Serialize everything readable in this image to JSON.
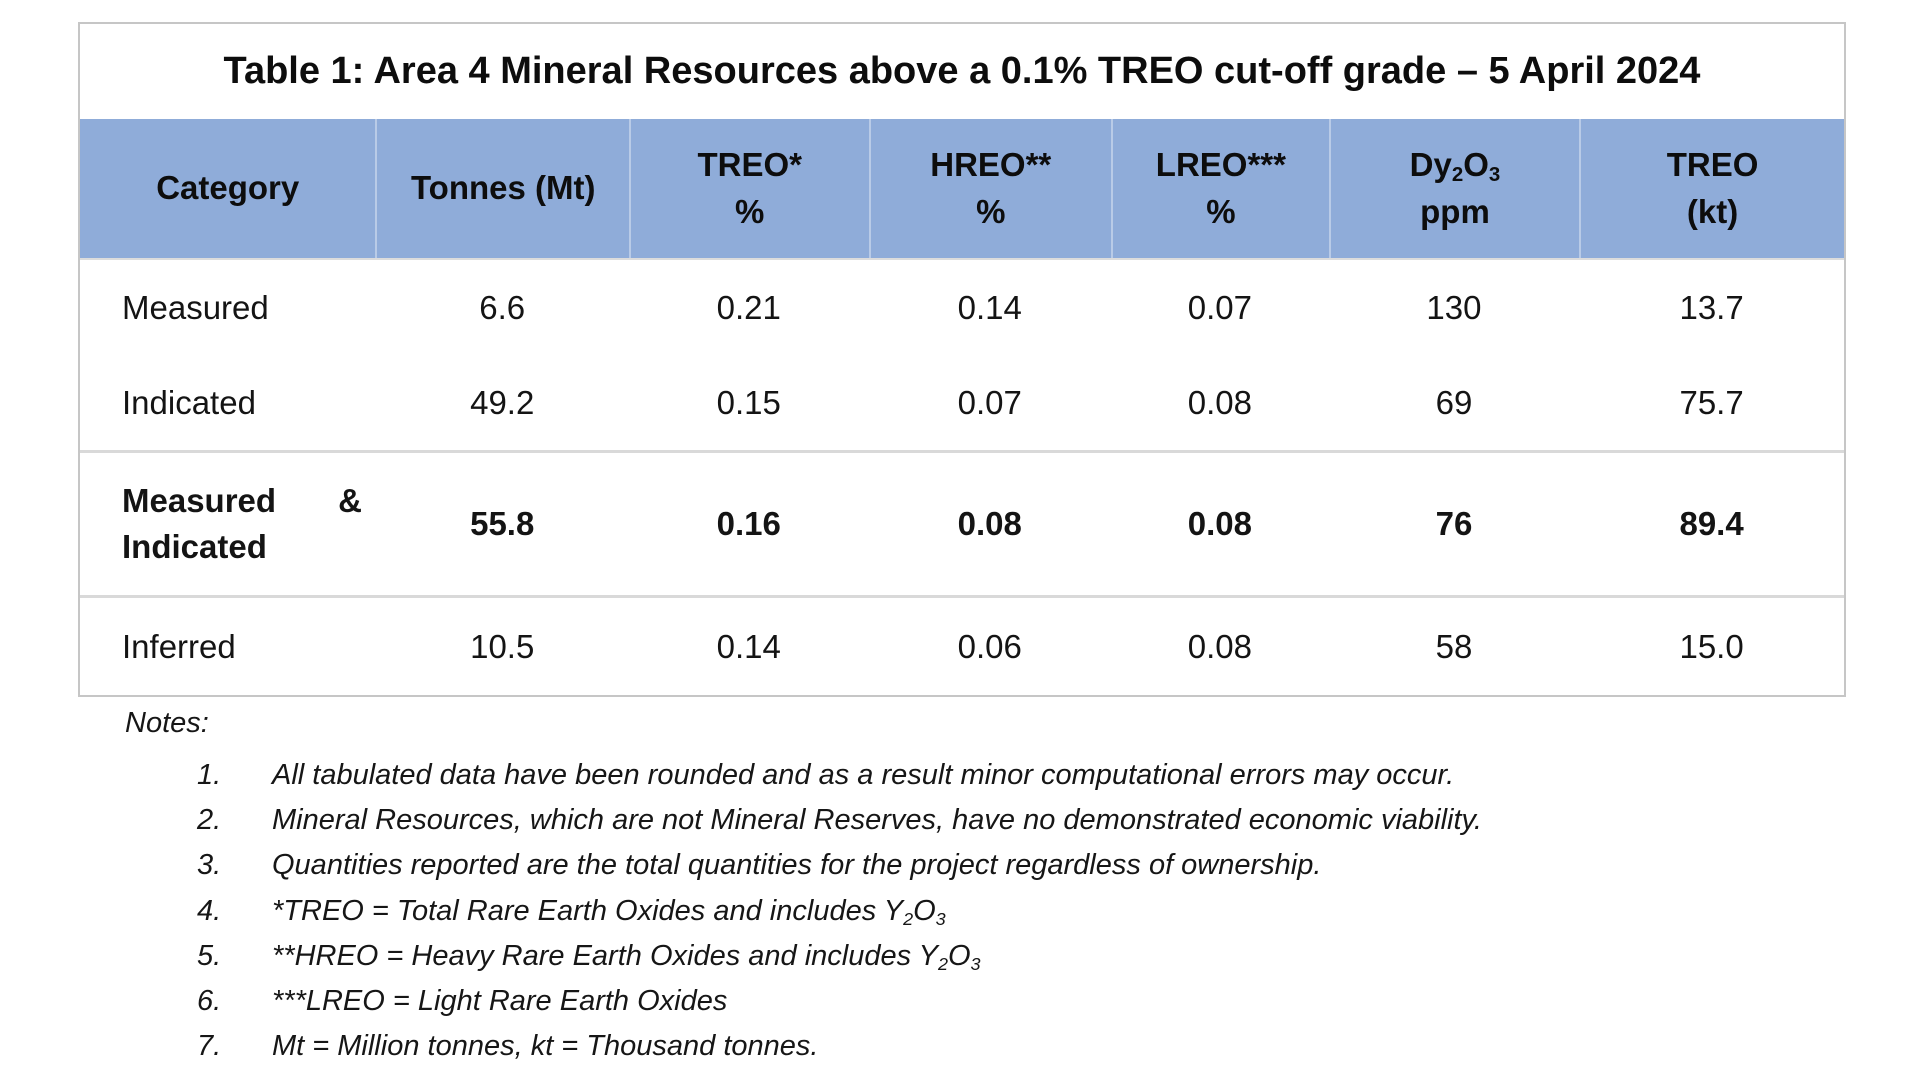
{
  "table": {
    "title": "Table 1: Area 4 Mineral Resources above a 0.1% TREO cut-off grade – 5 April 2024",
    "header": {
      "category": "Category",
      "tonnes": "Tonnes (Mt)",
      "treo_line1": "TREO*",
      "treo_line2": "%",
      "hreo_line1": "HREO**",
      "hreo_line2": "%",
      "lreo_line1": "LREO***",
      "lreo_line2": "%",
      "dy_el1": "Dy",
      "dy_sub1": "2",
      "dy_el2": "O",
      "dy_sub2": "3",
      "dy_line2": "ppm",
      "treokt_line1": "TREO",
      "treokt_line2": "(kt)"
    },
    "rows": [
      {
        "category": "Measured",
        "tonnes": "6.6",
        "treo_pct": "0.21",
        "hreo_pct": "0.14",
        "lreo_pct": "0.07",
        "dy_ppm": "130",
        "treo_kt": "13.7"
      },
      {
        "category": "Indicated",
        "tonnes": "49.2",
        "treo_pct": "0.15",
        "hreo_pct": "0.07",
        "lreo_pct": "0.08",
        "dy_ppm": "69",
        "treo_kt": "75.7"
      },
      {
        "category_word1": "Measured",
        "category_amp": "&",
        "category_word2": "Indicated",
        "tonnes": "55.8",
        "treo_pct": "0.16",
        "hreo_pct": "0.08",
        "lreo_pct": "0.08",
        "dy_ppm": "76",
        "treo_kt": "89.4"
      },
      {
        "category": "Inferred",
        "tonnes": "10.5",
        "treo_pct": "0.14",
        "hreo_pct": "0.06",
        "lreo_pct": "0.08",
        "dy_ppm": "58",
        "treo_kt": "15.0"
      }
    ]
  },
  "notes": {
    "heading": "Notes:",
    "items": [
      {
        "num": "1.",
        "text": "All tabulated data have been rounded and as a result minor computational errors may occur."
      },
      {
        "num": "2.",
        "text": "Mineral Resources, which are not Mineral Reserves, have no demonstrated economic viability."
      },
      {
        "num": "3.",
        "text": "Quantities reported are the total quantities for the project regardless of ownership."
      },
      {
        "num": "4.",
        "text": "*TREO = Total Rare Earth Oxides and includes Y",
        "formula_sub1": "2",
        "formula_el": "O",
        "formula_sub2": "3"
      },
      {
        "num": "5.",
        "text": "**HREO = Heavy Rare Earth Oxides and includes Y",
        "formula_sub1": "2",
        "formula_el": "O",
        "formula_sub2": "3"
      },
      {
        "num": "6.",
        "text": "***LREO = Light Rare Earth Oxides"
      },
      {
        "num": "7.",
        "text": "Mt = Million tonnes, kt = Thousand tonnes."
      }
    ]
  },
  "colors": {
    "header_bg": "#8FACD9",
    "header_separator": "#AFC4E2",
    "border_outer": "#C6C6C6",
    "border_inner": "#D9D9D9",
    "text": "#141414"
  }
}
